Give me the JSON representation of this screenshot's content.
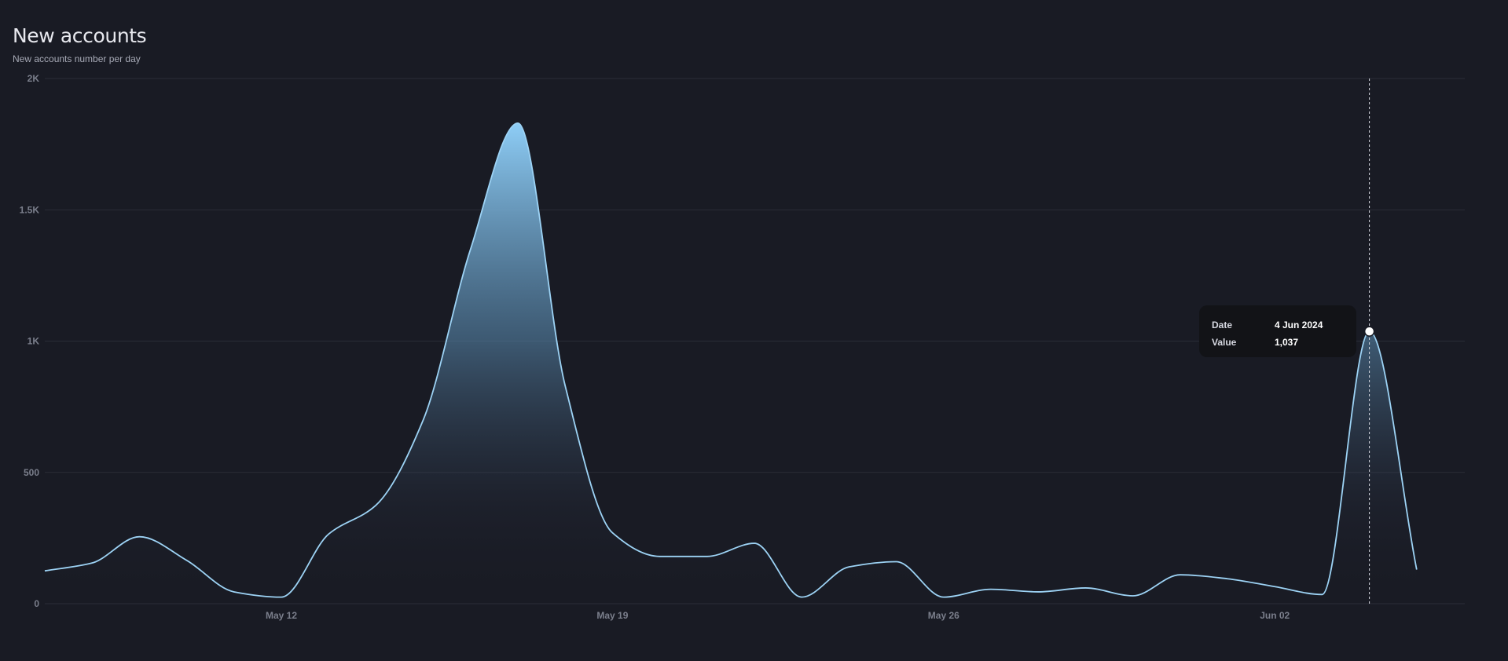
{
  "header": {
    "title": "New accounts",
    "subtitle": "New accounts number per day"
  },
  "tooltip": {
    "date_label": "Date",
    "date_value": "4 Jun 2024",
    "value_label": "Value",
    "value_value": "1,037"
  },
  "colors": {
    "background": "#191b24",
    "line": "#9dd3f5",
    "area_top": "#8ecdf6",
    "grid": "#2a2d37",
    "tooltip_bg": "#121317"
  },
  "chart_data": {
    "type": "area",
    "title": "New accounts",
    "subtitle": "New accounts number per day",
    "xlabel": "",
    "ylabel": "",
    "ylim": [
      0,
      2000
    ],
    "y_ticks": [
      0,
      500,
      1000,
      1500,
      2000
    ],
    "y_tick_labels": [
      "0",
      "500",
      "1K",
      "1.5K",
      "2K"
    ],
    "x_tick_labels": [
      "May 12",
      "May 19",
      "May 26",
      "Jun 02"
    ],
    "x_tick_dates": [
      "2024-05-12",
      "2024-05-19",
      "2024-05-26",
      "2024-06-02"
    ],
    "grid": true,
    "x": [
      "2024-05-07",
      "2024-05-08",
      "2024-05-09",
      "2024-05-10",
      "2024-05-11",
      "2024-05-12",
      "2024-05-13",
      "2024-05-14",
      "2024-05-15",
      "2024-05-16",
      "2024-05-17",
      "2024-05-18",
      "2024-05-19",
      "2024-05-20",
      "2024-05-21",
      "2024-05-22",
      "2024-05-23",
      "2024-05-24",
      "2024-05-25",
      "2024-05-26",
      "2024-05-27",
      "2024-05-28",
      "2024-05-29",
      "2024-05-30",
      "2024-05-31",
      "2024-06-01",
      "2024-06-02",
      "2024-06-03",
      "2024-06-04",
      "2024-06-05"
    ],
    "series": [
      {
        "values": [
          125,
          155,
          255,
          165,
          45,
          25,
          265,
          375,
          700,
          1350,
          1830,
          830,
          270,
          180,
          180,
          230,
          25,
          140,
          160,
          25,
          55,
          45,
          60,
          30,
          110,
          95,
          65,
          35,
          1037,
          130
        ]
      }
    ],
    "highlight": {
      "x": "2024-06-04",
      "value": 1037
    }
  }
}
